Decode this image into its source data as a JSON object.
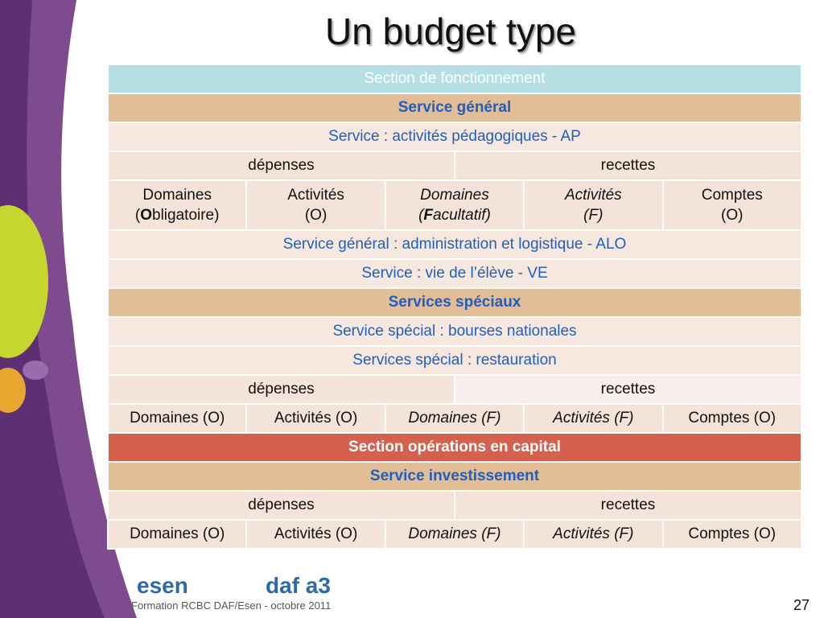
{
  "title": "Un budget type",
  "table": {
    "rows": [
      {
        "style": "section-cyan",
        "cells": [
          {
            "text": "Section de fonctionnement",
            "span": 10
          }
        ]
      },
      {
        "style": "service-tan",
        "cells": [
          {
            "text": "Service général",
            "span": 10
          }
        ]
      },
      {
        "style": "sub-blue",
        "cells": [
          {
            "text": "Service  : activités pédagogiques  - AP",
            "span": 10
          }
        ]
      },
      {
        "style": "plain",
        "cells": [
          {
            "text": "dépenses",
            "span": 5
          },
          {
            "text": "recettes",
            "span": 5
          }
        ]
      },
      {
        "style": "plain-tall",
        "cells": [
          {
            "span": 2,
            "lines": [
              "Domaines",
              [
                {
                  "text": "("
                },
                {
                  "text": "O",
                  "bold": true
                },
                {
                  "text": "bligatoire)"
                }
              ]
            ]
          },
          {
            "span": 2,
            "lines": [
              "Activités",
              "(O)"
            ]
          },
          {
            "span": 2,
            "italic": true,
            "lines": [
              "Domaines",
              [
                {
                  "text": "("
                },
                {
                  "text": "F",
                  "bold": true
                },
                {
                  "text": "acultatif)"
                }
              ]
            ]
          },
          {
            "span": 2,
            "italic": true,
            "lines": [
              "Activités",
              "(F)"
            ]
          },
          {
            "span": 2,
            "lines": [
              "Comptes",
              "(O)"
            ]
          }
        ]
      },
      {
        "style": "sub-blue",
        "cells": [
          {
            "text": "Service général : administration et logistique  - ALO",
            "span": 10
          }
        ]
      },
      {
        "style": "sub-blue",
        "cells": [
          {
            "text": "Service : vie de l’élève -  VE",
            "span": 10
          }
        ]
      },
      {
        "style": "service-tan",
        "cells": [
          {
            "text": "Services spéciaux",
            "span": 10
          }
        ]
      },
      {
        "style": "sub-blue",
        "cells": [
          {
            "text": "Service spécial : bourses nationales",
            "span": 10
          }
        ]
      },
      {
        "style": "sub-blue",
        "cells": [
          {
            "text": "Services spécial : restauration",
            "span": 10
          }
        ]
      },
      {
        "style": "plain",
        "cells": [
          {
            "text": "dépenses",
            "span": 5
          },
          {
            "text": "recettes",
            "span": 5,
            "light": true
          }
        ]
      },
      {
        "style": "plain",
        "cells": [
          {
            "text": "Domaines (O)",
            "span": 2
          },
          {
            "text": "Activités (O)",
            "span": 2
          },
          {
            "text": "Domaines (F)",
            "span": 2,
            "italic": true
          },
          {
            "text": "Activités (F)",
            "span": 2,
            "italic": true
          },
          {
            "text": "Comptes (O)",
            "span": 2
          }
        ]
      },
      {
        "style": "section-red",
        "cells": [
          {
            "text": "Section opérations en capital",
            "span": 10
          }
        ]
      },
      {
        "style": "service-tan",
        "cells": [
          {
            "text": "Service investissement",
            "span": 10
          }
        ]
      },
      {
        "style": "plain",
        "cells": [
          {
            "text": "dépenses",
            "span": 5
          },
          {
            "text": "recettes",
            "span": 5
          }
        ]
      },
      {
        "style": "plain",
        "cells": [
          {
            "text": "Domaines (O)",
            "span": 2
          },
          {
            "text": "Activités (O)",
            "span": 2
          },
          {
            "text": "Domaines (F)",
            "span": 2,
            "italic": true
          },
          {
            "text": "Activités (F)",
            "span": 2,
            "italic": true
          },
          {
            "text": "Comptes (O)",
            "span": 2
          }
        ]
      }
    ]
  },
  "footer": {
    "logo_left": "esen",
    "logo_right": "daf a3",
    "text": "Formation RCBC DAF/Esen - octobre 2011",
    "page": "27"
  }
}
